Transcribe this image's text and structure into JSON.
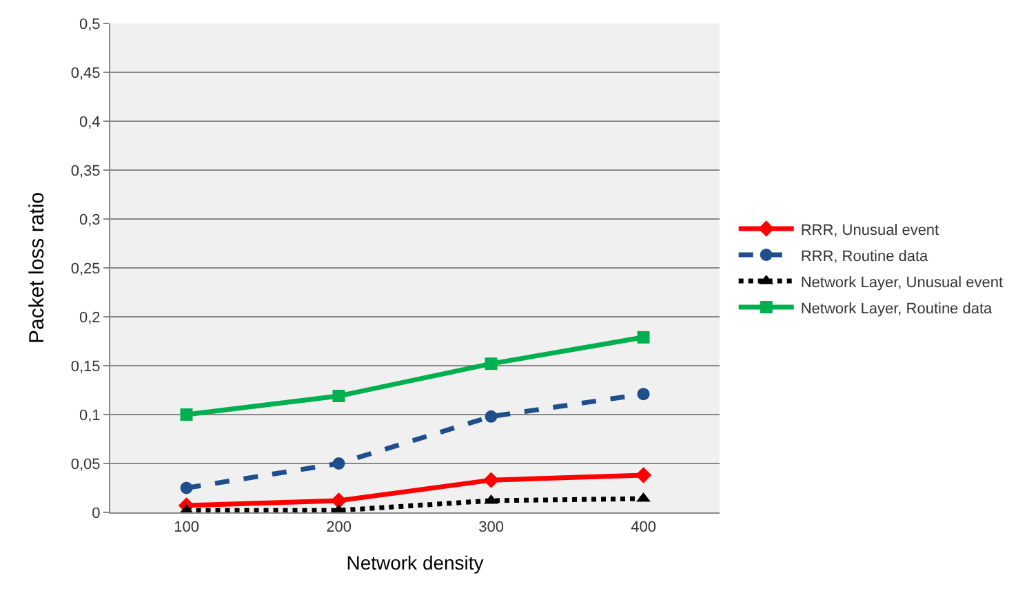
{
  "chart_data": {
    "type": "line",
    "xlabel": "Network density",
    "ylabel": "Packet loss ratio",
    "categories": [
      "100",
      "200",
      "300",
      "400"
    ],
    "series": [
      {
        "name": "RRR, Unusual event",
        "color": "#ff0000",
        "marker": "diamond",
        "line_style": "solid",
        "values": [
          0.007,
          0.012,
          0.033,
          0.038
        ]
      },
      {
        "name": "RRR, Routine data",
        "color": "#1f4e8c",
        "marker": "circle",
        "line_style": "dashed",
        "values": [
          0.025,
          0.05,
          0.098,
          0.121
        ]
      },
      {
        "name": "Network Layer, Unusual event",
        "color": "#000000",
        "marker": "triangle",
        "line_style": "dotted",
        "values": [
          0.002,
          0.002,
          0.012,
          0.014
        ]
      },
      {
        "name": "Network Layer, Routine data",
        "color": "#00b050",
        "marker": "square",
        "line_style": "solid",
        "values": [
          0.1,
          0.119,
          0.152,
          0.179
        ]
      }
    ],
    "ylim": [
      0,
      0.5
    ],
    "yticks": [
      0,
      {
        "value": 0.05,
        "label": "0,05"
      },
      {
        "value": 0.1,
        "label": "0,1"
      },
      {
        "value": 0.15,
        "label": "0,15"
      },
      {
        "value": 0.2,
        "label": "0,2"
      },
      {
        "value": 0.25,
        "label": "0,25"
      },
      {
        "value": 0.3,
        "label": "0,3"
      },
      {
        "value": 0.35,
        "label": "0,35"
      },
      {
        "value": 0.4,
        "label": "0,4"
      },
      {
        "value": 0.45,
        "label": "0,45"
      },
      {
        "value": 0.5,
        "label": "0,5"
      }
    ],
    "grid": "y",
    "legend": "right"
  }
}
